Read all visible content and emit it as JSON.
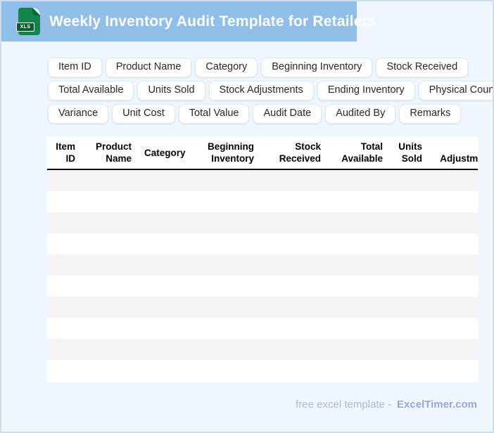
{
  "header": {
    "title": "Weekly Inventory Audit Template for Retailers",
    "file_badge": "XLS",
    "bar_color": "#90bee8",
    "icon_colors": {
      "body": "#12854b",
      "badge": "#0a5c33"
    }
  },
  "chips": [
    "Item ID",
    "Product Name",
    "Category",
    "Beginning Inventory",
    "Stock Received",
    "Total Available",
    "Units Sold",
    "Stock Adjustments",
    "Ending Inventory",
    "Physical Count",
    "Variance",
    "Unit Cost",
    "Total Value",
    "Audit Date",
    "Audited By",
    "Remarks"
  ],
  "table": {
    "columns": [
      "Item ID",
      "Product Name",
      "Category",
      "Beginning Inventory",
      "Stock Received",
      "Total Available",
      "Units Sold",
      "Adjustments"
    ],
    "visible_empty_rows": 10,
    "stripe_color": "#f4f4f5",
    "note_last_column_clipped": "Adjustments column is cut off at the right card edge"
  },
  "footer": {
    "prefix": "free excel template -",
    "brand": "ExcelTimer.com"
  },
  "colors": {
    "page_background": "#f0f6fe",
    "page_border": "#cfdcec",
    "titlebar": "#90bee8",
    "chip_border": "#e2e7ef",
    "footer_prefix": "#a9b6ea",
    "footer_brand": "#97a5d8"
  }
}
